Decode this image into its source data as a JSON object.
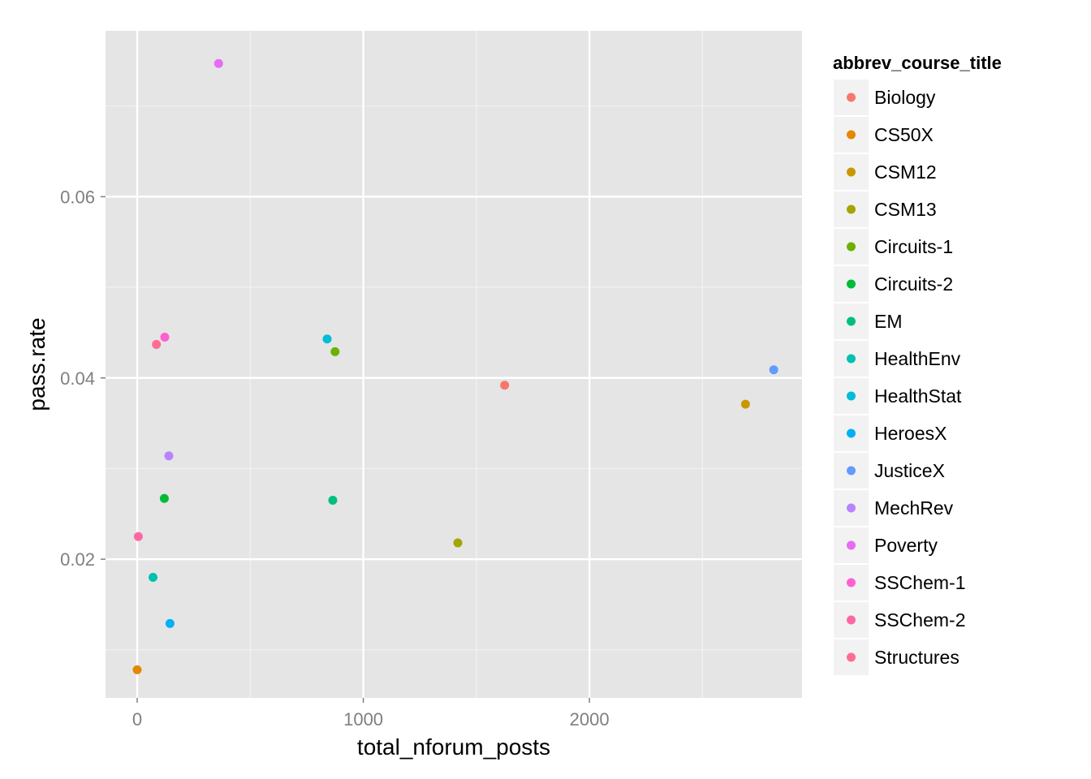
{
  "chart_data": {
    "type": "scatter",
    "xlabel": "total_nforum_posts",
    "ylabel": "pass.rate",
    "xlim": [
      -140,
      2940
    ],
    "ylim": [
      0.0047,
      0.0783
    ],
    "x_ticks": [
      0,
      1000,
      2000
    ],
    "x_tick_labels": [
      "0",
      "1000",
      "2000"
    ],
    "x_minor_ticks": [
      500,
      1500,
      2500
    ],
    "y_ticks": [
      0.02,
      0.04,
      0.06
    ],
    "y_tick_labels": [
      "0.02",
      "0.04",
      "0.06"
    ],
    "y_minor_ticks": [
      0.01,
      0.03,
      0.05,
      0.07
    ],
    "grid": true,
    "legend_placement": "right",
    "legend_title": "abbrev_course_title",
    "series": [
      {
        "name": "Biology",
        "color": "#F8766D",
        "x": 1625,
        "y": 0.0392
      },
      {
        "name": "CS50X",
        "color": "#E58700",
        "x": 0,
        "y": 0.0078
      },
      {
        "name": "CSM12",
        "color": "#C99800",
        "x": 2690,
        "y": 0.0371
      },
      {
        "name": "CSM13",
        "color": "#A3A500",
        "x": 1418,
        "y": 0.0218
      },
      {
        "name": "Circuits-1",
        "color": "#6BB100",
        "x": 875,
        "y": 0.0429
      },
      {
        "name": "Circuits-2",
        "color": "#00BA38",
        "x": 120,
        "y": 0.0267
      },
      {
        "name": "EM",
        "color": "#00BF7D",
        "x": 865,
        "y": 0.0265
      },
      {
        "name": "HealthEnv",
        "color": "#00C0AF",
        "x": 70,
        "y": 0.018
      },
      {
        "name": "HealthStat",
        "color": "#00BCD8",
        "x": 840,
        "y": 0.0443
      },
      {
        "name": "HeroesX",
        "color": "#00B0F6",
        "x": 145,
        "y": 0.0129
      },
      {
        "name": "JusticeX",
        "color": "#619CFF",
        "x": 2815,
        "y": 0.0409
      },
      {
        "name": "MechRev",
        "color": "#B983FF",
        "x": 140,
        "y": 0.0314
      },
      {
        "name": "Poverty",
        "color": "#E76BF3",
        "x": 360,
        "y": 0.0747
      },
      {
        "name": "SSChem-1",
        "color": "#FD61D1",
        "x": 122,
        "y": 0.0445
      },
      {
        "name": "SSChem-2",
        "color": "#FF67A4",
        "x": 5,
        "y": 0.0225
      },
      {
        "name": "Structures",
        "color": "#FF6C91",
        "x": 85,
        "y": 0.0437
      }
    ]
  }
}
